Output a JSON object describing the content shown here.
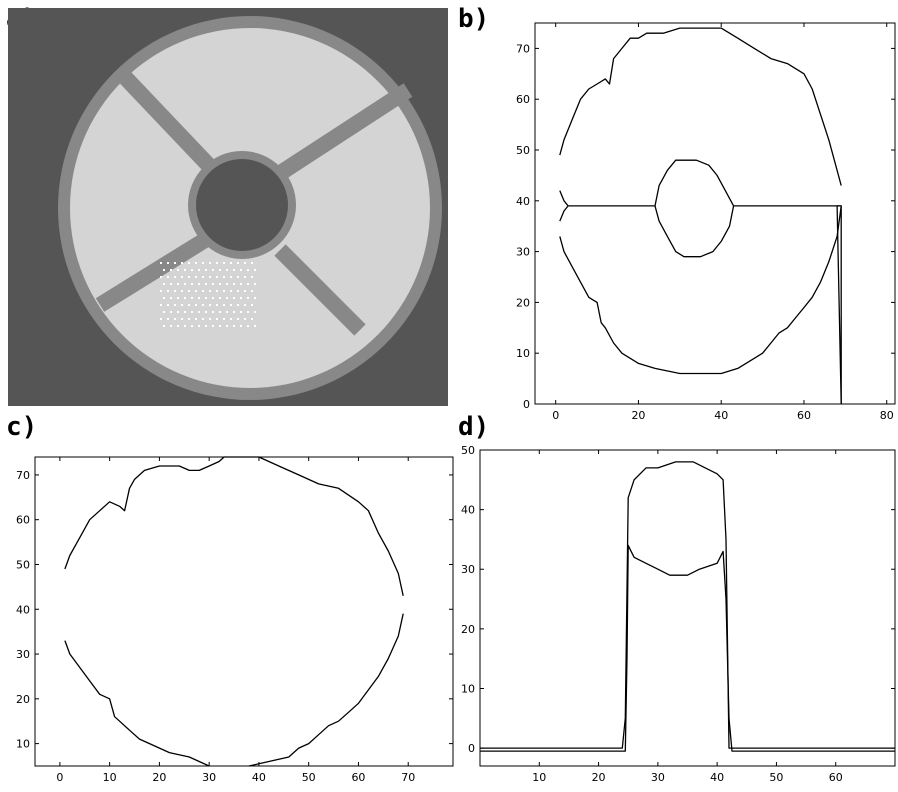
{
  "panels": {
    "a": {
      "label": "a)"
    },
    "b": {
      "label": "b)"
    },
    "c": {
      "label": "c)"
    },
    "d": {
      "label": "d)"
    }
  },
  "image_a": {
    "background": "#555555",
    "ring_dark": "#888888",
    "ring_light": "#d4d4d4",
    "highlight": "#ffffff"
  },
  "chart_data": [
    {
      "panel": "b",
      "type": "line",
      "title": "",
      "xlabel": "",
      "ylabel": "",
      "xlim": [
        -5,
        82
      ],
      "ylim": [
        0,
        75
      ],
      "xticks": [
        0,
        20,
        40,
        60,
        80
      ],
      "yticks": [
        0,
        10,
        20,
        30,
        40,
        50,
        60,
        70
      ],
      "grid": false,
      "series": [
        {
          "points": [
            [
              1,
              49
            ],
            [
              2,
              52
            ],
            [
              4,
              56
            ],
            [
              6,
              60
            ],
            [
              8,
              62
            ],
            [
              10,
              63
            ],
            [
              12,
              64
            ],
            [
              13,
              63
            ],
            [
              14,
              68
            ],
            [
              16,
              70
            ],
            [
              18,
              72
            ],
            [
              20,
              72
            ],
            [
              22,
              73
            ],
            [
              26,
              73
            ],
            [
              30,
              74
            ],
            [
              40,
              74
            ],
            [
              44,
              72
            ],
            [
              48,
              70
            ],
            [
              52,
              68
            ],
            [
              56,
              67
            ],
            [
              60,
              65
            ],
            [
              62,
              62
            ],
            [
              64,
              57
            ],
            [
              66,
              52
            ],
            [
              68,
              46
            ],
            [
              69,
              43
            ]
          ]
        },
        {
          "points": [
            [
              1,
              33
            ],
            [
              2,
              30
            ],
            [
              4,
              27
            ],
            [
              6,
              24
            ],
            [
              8,
              21
            ],
            [
              10,
              20
            ],
            [
              11,
              16
            ],
            [
              12,
              15
            ],
            [
              14,
              12
            ],
            [
              16,
              10
            ],
            [
              18,
              9
            ],
            [
              20,
              8
            ],
            [
              24,
              7
            ],
            [
              30,
              6
            ],
            [
              40,
              6
            ],
            [
              44,
              7
            ],
            [
              48,
              9
            ],
            [
              50,
              10
            ],
            [
              52,
              12
            ],
            [
              54,
              14
            ],
            [
              56,
              15
            ],
            [
              58,
              17
            ],
            [
              60,
              19
            ],
            [
              62,
              21
            ],
            [
              64,
              24
            ],
            [
              66,
              28
            ],
            [
              68,
              33
            ],
            [
              69,
              39
            ]
          ]
        },
        {
          "points": [
            [
              1,
              42
            ],
            [
              2,
              40
            ],
            [
              3,
              39
            ],
            [
              24,
              39
            ],
            [
              25,
              43
            ],
            [
              27,
              46
            ],
            [
              29,
              48
            ],
            [
              34,
              48
            ],
            [
              37,
              47
            ],
            [
              39,
              45
            ],
            [
              41,
              42
            ],
            [
              43,
              39
            ],
            [
              69,
              39
            ]
          ]
        },
        {
          "points": [
            [
              1,
              36
            ],
            [
              2,
              38
            ],
            [
              3,
              39
            ]
          ]
        },
        {
          "points": [
            [
              24,
              39
            ],
            [
              25,
              36
            ],
            [
              27,
              33
            ],
            [
              29,
              30
            ],
            [
              31,
              29
            ],
            [
              35,
              29
            ],
            [
              38,
              30
            ],
            [
              40,
              32
            ],
            [
              42,
              35
            ],
            [
              43,
              39
            ]
          ]
        },
        {
          "points": [
            [
              68,
              39
            ],
            [
              69,
              39
            ],
            [
              69,
              0
            ]
          ]
        },
        {
          "points": [
            [
              68,
              39
            ],
            [
              68.5,
              20
            ],
            [
              69,
              0
            ]
          ]
        }
      ]
    },
    {
      "panel": "c",
      "type": "line",
      "title": "",
      "xlabel": "",
      "ylabel": "",
      "xlim": [
        -5,
        79
      ],
      "ylim": [
        5,
        74
      ],
      "xticks": [
        0,
        10,
        20,
        30,
        40,
        50,
        60,
        70
      ],
      "yticks": [
        10,
        20,
        30,
        40,
        50,
        60,
        70
      ],
      "grid": false,
      "series": [
        {
          "points": [
            [
              1,
              49
            ],
            [
              2,
              52
            ],
            [
              4,
              56
            ],
            [
              6,
              60
            ],
            [
              8,
              62
            ],
            [
              10,
              64
            ],
            [
              12,
              63
            ],
            [
              13,
              62
            ],
            [
              14,
              67
            ],
            [
              15,
              69
            ],
            [
              17,
              71
            ],
            [
              20,
              72
            ],
            [
              24,
              72
            ],
            [
              26,
              71
            ],
            [
              28,
              71
            ],
            [
              30,
              72
            ],
            [
              32,
              73
            ],
            [
              33,
              74
            ],
            [
              40,
              74
            ],
            [
              44,
              72
            ],
            [
              48,
              70
            ],
            [
              52,
              68
            ],
            [
              56,
              67
            ],
            [
              60,
              64
            ],
            [
              62,
              62
            ],
            [
              64,
              57
            ],
            [
              66,
              53
            ],
            [
              68,
              48
            ],
            [
              69,
              43
            ]
          ]
        },
        {
          "points": [
            [
              1,
              33
            ],
            [
              2,
              30
            ],
            [
              4,
              27
            ],
            [
              6,
              24
            ],
            [
              8,
              21
            ],
            [
              10,
              20
            ],
            [
              11,
              16
            ],
            [
              12,
              15
            ],
            [
              14,
              13
            ],
            [
              16,
              11
            ],
            [
              18,
              10
            ],
            [
              22,
              8
            ],
            [
              26,
              7
            ],
            [
              28,
              6
            ],
            [
              30,
              5
            ]
          ]
        },
        {
          "points": [
            [
              38,
              5
            ],
            [
              42,
              6
            ],
            [
              46,
              7
            ],
            [
              48,
              9
            ],
            [
              50,
              10
            ],
            [
              52,
              12
            ],
            [
              54,
              14
            ],
            [
              56,
              15
            ],
            [
              58,
              17
            ],
            [
              60,
              19
            ],
            [
              62,
              22
            ],
            [
              64,
              25
            ],
            [
              66,
              29
            ],
            [
              68,
              34
            ],
            [
              69,
              39
            ]
          ]
        }
      ]
    },
    {
      "panel": "d",
      "type": "line",
      "title": "",
      "xlabel": "",
      "ylabel": "",
      "xlim": [
        0,
        70
      ],
      "ylim": [
        -3,
        50
      ],
      "xticks": [
        10,
        20,
        30,
        40,
        50,
        60
      ],
      "xtick_labels": [
        "10",
        "20",
        "30",
        "40",
        "50",
        "60"
      ],
      "yticks": [
        0,
        10,
        20,
        30,
        40,
        50
      ],
      "ytick_labels": [
        "0",
        "10",
        "20",
        "30",
        "40",
        "50"
      ],
      "grid": false,
      "series": [
        {
          "points": [
            [
              0,
              0
            ],
            [
              24,
              0
            ],
            [
              24.5,
              5
            ],
            [
              25,
              42
            ],
            [
              26,
              45
            ],
            [
              28,
              47
            ],
            [
              30,
              47
            ],
            [
              33,
              48
            ],
            [
              36,
              48
            ],
            [
              38,
              47
            ],
            [
              40,
              46
            ],
            [
              41,
              45
            ],
            [
              41.5,
              35
            ],
            [
              42,
              0
            ],
            [
              70,
              0
            ]
          ]
        },
        {
          "points": [
            [
              0,
              -0.5
            ],
            [
              24.5,
              -0.5
            ],
            [
              24.8,
              15
            ],
            [
              25,
              34
            ],
            [
              26,
              32
            ],
            [
              28,
              31
            ],
            [
              30,
              30
            ],
            [
              32,
              29
            ],
            [
              35,
              29
            ],
            [
              37,
              30
            ],
            [
              40,
              31
            ],
            [
              41,
              33
            ],
            [
              41.5,
              25
            ],
            [
              42,
              5
            ],
            [
              42.5,
              -0.5
            ],
            [
              70,
              -0.5
            ]
          ]
        }
      ]
    }
  ]
}
